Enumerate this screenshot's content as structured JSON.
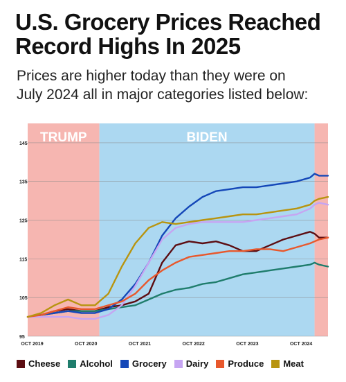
{
  "title_line1": "U.S. Grocery Prices Reached",
  "title_line2": "Record Highs In 2025",
  "subtitle_line1": "Prices are higher today than they were on",
  "subtitle_line2": "July 2024 all in major categories listed below:",
  "chart_data": {
    "type": "line",
    "title": "U.S. Grocery Prices Reached Record Highs In 2025",
    "ylim": [
      95,
      150
    ],
    "yticks": [
      95,
      105,
      115,
      125,
      135,
      145
    ],
    "xlim": [
      "2019-09",
      "2025-04"
    ],
    "xtick_dates": [
      "2019-10",
      "2020-10",
      "2021-10",
      "2022-10",
      "2023-10",
      "2024-10"
    ],
    "xtick_labels": [
      "OCT 2019",
      "OCT 2020",
      "OCT 2021",
      "OCT 2022",
      "OCT 2023",
      "OCT 2024"
    ],
    "regions": [
      {
        "label": "TRUMP",
        "start": "2019-09",
        "end": "2021-01",
        "color": "#f6b6b1"
      },
      {
        "label": "BIDEN",
        "start": "2021-01",
        "end": "2025-01",
        "color": "#acd8f1"
      },
      {
        "label": "",
        "start": "2025-01",
        "end": "2025-04",
        "color": "#f6b6b1"
      }
    ],
    "grid": true,
    "series": [
      {
        "name": "Cheese",
        "color": "#5c0d12",
        "points": [
          [
            "2019-09",
            100
          ],
          [
            "2019-12",
            100.5
          ],
          [
            "2020-03",
            101.5
          ],
          [
            "2020-06",
            102
          ],
          [
            "2020-09",
            101.5
          ],
          [
            "2020-12",
            101.5
          ],
          [
            "2021-03",
            102.5
          ],
          [
            "2021-06",
            103
          ],
          [
            "2021-09",
            104
          ],
          [
            "2021-12",
            106
          ],
          [
            "2022-03",
            114
          ],
          [
            "2022-06",
            118.5
          ],
          [
            "2022-09",
            119.5
          ],
          [
            "2022-12",
            119
          ],
          [
            "2023-03",
            119.5
          ],
          [
            "2023-06",
            118.5
          ],
          [
            "2023-09",
            117
          ],
          [
            "2023-12",
            117
          ],
          [
            "2024-03",
            118.5
          ],
          [
            "2024-06",
            120
          ],
          [
            "2024-09",
            121
          ],
          [
            "2024-12",
            122
          ],
          [
            "2025-01",
            121.5
          ],
          [
            "2025-02",
            120.5
          ],
          [
            "2025-04",
            120.5
          ]
        ]
      },
      {
        "name": "Alcohol",
        "color": "#1f7d6c",
        "points": [
          [
            "2019-09",
            100
          ],
          [
            "2019-12",
            100.5
          ],
          [
            "2020-03",
            101
          ],
          [
            "2020-06",
            101.5
          ],
          [
            "2020-09",
            101.5
          ],
          [
            "2020-12",
            101.5
          ],
          [
            "2021-03",
            102
          ],
          [
            "2021-06",
            102.5
          ],
          [
            "2021-09",
            103
          ],
          [
            "2021-12",
            104.5
          ],
          [
            "2022-03",
            106
          ],
          [
            "2022-06",
            107
          ],
          [
            "2022-09",
            107.5
          ],
          [
            "2022-12",
            108.5
          ],
          [
            "2023-03",
            109
          ],
          [
            "2023-06",
            110
          ],
          [
            "2023-09",
            111
          ],
          [
            "2023-12",
            111.5
          ],
          [
            "2024-03",
            112
          ],
          [
            "2024-06",
            112.5
          ],
          [
            "2024-09",
            113
          ],
          [
            "2024-12",
            113.5
          ],
          [
            "2025-01",
            114
          ],
          [
            "2025-02",
            113.5
          ],
          [
            "2025-04",
            113
          ]
        ]
      },
      {
        "name": "Grocery",
        "color": "#1447b8",
        "points": [
          [
            "2019-09",
            100
          ],
          [
            "2019-12",
            100.5
          ],
          [
            "2020-03",
            101
          ],
          [
            "2020-06",
            101.5
          ],
          [
            "2020-09",
            101
          ],
          [
            "2020-12",
            101
          ],
          [
            "2021-03",
            102
          ],
          [
            "2021-06",
            104.5
          ],
          [
            "2021-09",
            108.5
          ],
          [
            "2021-12",
            114
          ],
          [
            "2022-03",
            121
          ],
          [
            "2022-06",
            125.5
          ],
          [
            "2022-09",
            128.5
          ],
          [
            "2022-12",
            131
          ],
          [
            "2023-03",
            132.5
          ],
          [
            "2023-06",
            133
          ],
          [
            "2023-09",
            133.5
          ],
          [
            "2023-12",
            133.5
          ],
          [
            "2024-03",
            134
          ],
          [
            "2024-06",
            134.5
          ],
          [
            "2024-09",
            135
          ],
          [
            "2024-12",
            136
          ],
          [
            "2025-01",
            137
          ],
          [
            "2025-02",
            136.5
          ],
          [
            "2025-04",
            136.5
          ]
        ]
      },
      {
        "name": "Dairy",
        "color": "#c6a5f2",
        "points": [
          [
            "2019-09",
            100
          ],
          [
            "2019-12",
            100
          ],
          [
            "2020-03",
            100
          ],
          [
            "2020-06",
            100
          ],
          [
            "2020-09",
            99.5
          ],
          [
            "2020-12",
            99.5
          ],
          [
            "2021-03",
            100.5
          ],
          [
            "2021-06",
            103
          ],
          [
            "2021-09",
            108
          ],
          [
            "2021-12",
            114
          ],
          [
            "2022-03",
            120
          ],
          [
            "2022-06",
            123
          ],
          [
            "2022-09",
            124
          ],
          [
            "2022-12",
            124.5
          ],
          [
            "2023-03",
            124.5
          ],
          [
            "2023-06",
            124.5
          ],
          [
            "2023-09",
            124.5
          ],
          [
            "2023-12",
            125
          ],
          [
            "2024-03",
            125.5
          ],
          [
            "2024-06",
            126
          ],
          [
            "2024-09",
            126.5
          ],
          [
            "2024-12",
            128
          ],
          [
            "2025-01",
            129
          ],
          [
            "2025-02",
            129.5
          ],
          [
            "2025-04",
            129
          ]
        ]
      },
      {
        "name": "Produce",
        "color": "#e8582c",
        "points": [
          [
            "2019-09",
            100
          ],
          [
            "2019-12",
            100.5
          ],
          [
            "2020-03",
            101.5
          ],
          [
            "2020-06",
            102.5
          ],
          [
            "2020-09",
            102
          ],
          [
            "2020-12",
            102
          ],
          [
            "2021-03",
            103
          ],
          [
            "2021-06",
            104
          ],
          [
            "2021-09",
            106
          ],
          [
            "2021-12",
            109.5
          ],
          [
            "2022-03",
            112
          ],
          [
            "2022-06",
            114
          ],
          [
            "2022-09",
            115.5
          ],
          [
            "2022-12",
            116
          ],
          [
            "2023-03",
            116.5
          ],
          [
            "2023-06",
            117
          ],
          [
            "2023-09",
            117
          ],
          [
            "2023-12",
            117.5
          ],
          [
            "2024-03",
            117.5
          ],
          [
            "2024-06",
            117
          ],
          [
            "2024-09",
            118
          ],
          [
            "2024-12",
            119
          ],
          [
            "2025-01",
            119.5
          ],
          [
            "2025-02",
            120
          ],
          [
            "2025-04",
            120.5
          ]
        ]
      },
      {
        "name": "Meat",
        "color": "#b8940f",
        "points": [
          [
            "2019-09",
            100
          ],
          [
            "2019-12",
            101
          ],
          [
            "2020-03",
            103
          ],
          [
            "2020-06",
            104.5
          ],
          [
            "2020-09",
            103
          ],
          [
            "2020-12",
            103
          ],
          [
            "2021-03",
            106
          ],
          [
            "2021-06",
            113
          ],
          [
            "2021-09",
            119
          ],
          [
            "2021-12",
            123
          ],
          [
            "2022-03",
            124.5
          ],
          [
            "2022-06",
            124
          ],
          [
            "2022-09",
            124.5
          ],
          [
            "2022-12",
            125
          ],
          [
            "2023-03",
            125.5
          ],
          [
            "2023-06",
            126
          ],
          [
            "2023-09",
            126.5
          ],
          [
            "2023-12",
            126.5
          ],
          [
            "2024-03",
            127
          ],
          [
            "2024-06",
            127.5
          ],
          [
            "2024-09",
            128
          ],
          [
            "2024-12",
            129
          ],
          [
            "2025-01",
            130
          ],
          [
            "2025-02",
            130.5
          ],
          [
            "2025-04",
            131
          ]
        ]
      }
    ]
  }
}
